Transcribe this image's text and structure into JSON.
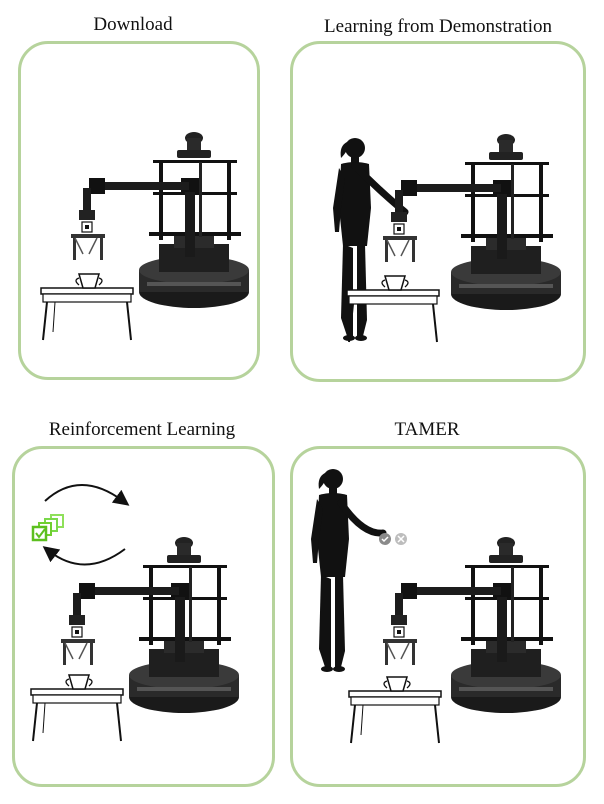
{
  "panels": [
    {
      "title": "Download"
    },
    {
      "title": "Learning from Demonstration"
    },
    {
      "title": "Reinforcement Learning"
    },
    {
      "title": "TAMER"
    }
  ],
  "colors": {
    "panel_border": "#b6d39c",
    "robot": "#1a1a1a",
    "human": "#111111",
    "feedback_icon": "#8a8a8a",
    "rl_agent_icon": "#6fcf2f"
  },
  "icons": {
    "cycle": "cycle-arrows-icon",
    "agent": "stacked-checkbox-icon",
    "positive_feedback": "check-circle-icon",
    "negative_feedback": "x-circle-icon"
  }
}
